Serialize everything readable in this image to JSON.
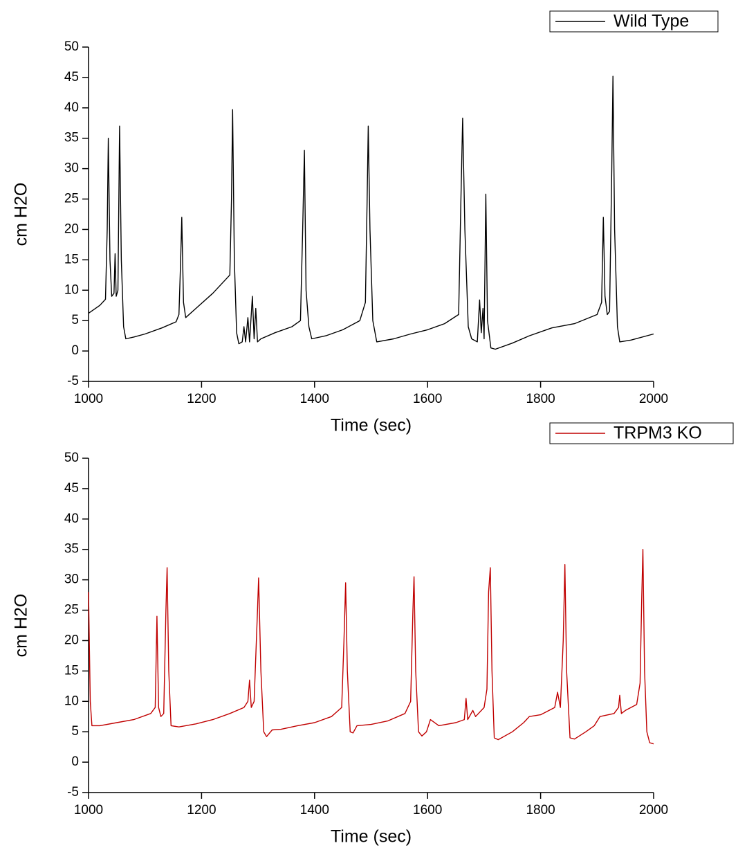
{
  "chart_data": [
    {
      "type": "line",
      "xlabel": "Time (sec)",
      "ylabel": "cm H2O",
      "xlim": [
        1000,
        2000
      ],
      "ylim": [
        -5,
        50
      ],
      "xticks": [
        1000,
        1200,
        1400,
        1600,
        1800,
        2000
      ],
      "yticks": [
        -5,
        0,
        5,
        10,
        15,
        20,
        25,
        30,
        35,
        40,
        45,
        50
      ],
      "legend": "upper right",
      "x": [
        1000,
        1020,
        1030,
        1033,
        1035,
        1038,
        1041,
        1045,
        1047,
        1049,
        1052,
        1055,
        1058,
        1062,
        1066,
        1080,
        1100,
        1130,
        1155,
        1160,
        1163,
        1165,
        1168,
        1172,
        1190,
        1220,
        1250,
        1253,
        1255,
        1258,
        1262,
        1266,
        1272,
        1275,
        1278,
        1282,
        1285,
        1290,
        1293,
        1296,
        1299,
        1305,
        1330,
        1360,
        1375,
        1379,
        1382,
        1385,
        1390,
        1395,
        1420,
        1450,
        1480,
        1490,
        1493,
        1495,
        1498,
        1503,
        1510,
        1540,
        1570,
        1600,
        1630,
        1655,
        1659,
        1662,
        1666,
        1672,
        1678,
        1688,
        1692,
        1695,
        1698,
        1700,
        1703,
        1706,
        1712,
        1720,
        1750,
        1780,
        1820,
        1860,
        1900,
        1908,
        1911,
        1914,
        1918,
        1922,
        1926,
        1928,
        1931,
        1936,
        1940,
        1960,
        2000
      ],
      "series": [
        {
          "name": "Wild Type",
          "color": "#000000",
          "values": [
            6.2,
            7.5,
            8.5,
            20,
            35,
            15,
            9,
            9.5,
            16,
            9,
            10,
            37,
            15,
            4,
            2,
            2.3,
            2.8,
            3.8,
            4.8,
            6,
            15,
            22,
            8,
            5.5,
            7,
            9.5,
            12.5,
            25,
            39.7,
            15,
            3,
            1.2,
            1.5,
            4,
            1.5,
            5.5,
            1.5,
            9,
            2,
            7,
            1.5,
            2,
            3,
            4,
            5,
            20,
            33,
            10,
            4,
            2,
            2.5,
            3.5,
            5,
            8,
            25,
            37,
            20,
            5,
            1.5,
            2,
            2.8,
            3.5,
            4.5,
            6,
            25,
            38.3,
            20,
            4,
            2,
            1.5,
            8.4,
            3,
            7,
            2,
            25.8,
            5,
            0.5,
            0.3,
            1.3,
            2.5,
            3.8,
            4.5,
            6,
            8,
            22,
            9,
            6,
            6.5,
            30,
            45.2,
            20,
            4,
            1.5,
            1.8,
            2.8
          ]
        }
      ]
    },
    {
      "type": "line",
      "xlabel": "Time (sec)",
      "ylabel": "cm H2O",
      "xlim": [
        1000,
        2000
      ],
      "ylim": [
        -5,
        50
      ],
      "xticks": [
        1000,
        1200,
        1400,
        1600,
        1800,
        2000
      ],
      "yticks": [
        -5,
        0,
        5,
        10,
        15,
        20,
        25,
        30,
        35,
        40,
        45,
        50
      ],
      "legend": "upper right",
      "x": [
        1000,
        1003,
        1006,
        1020,
        1050,
        1080,
        1110,
        1118,
        1121,
        1124,
        1128,
        1133,
        1137,
        1139,
        1142,
        1146,
        1160,
        1190,
        1220,
        1250,
        1275,
        1282,
        1285,
        1288,
        1293,
        1299,
        1301,
        1305,
        1310,
        1315,
        1325,
        1340,
        1370,
        1400,
        1430,
        1448,
        1452,
        1455,
        1458,
        1463,
        1468,
        1475,
        1500,
        1530,
        1560,
        1570,
        1574,
        1576,
        1579,
        1584,
        1590,
        1598,
        1605,
        1620,
        1650,
        1665,
        1668,
        1671,
        1680,
        1685,
        1700,
        1705,
        1708,
        1711,
        1714,
        1718,
        1725,
        1750,
        1770,
        1780,
        1800,
        1825,
        1830,
        1835,
        1840,
        1843,
        1846,
        1852,
        1860,
        1880,
        1895,
        1905,
        1930,
        1938,
        1940,
        1943,
        1950,
        1970,
        1976,
        1979,
        1981,
        1984,
        1988,
        1993,
        2000
      ],
      "series": [
        {
          "name": "TRPM3 KO",
          "color": "#c00000",
          "values": [
            28,
            10,
            6,
            6,
            6.5,
            7,
            8,
            9,
            24,
            9,
            7.5,
            8,
            25,
            32,
            15,
            6,
            5.8,
            6.3,
            7,
            8,
            9,
            10,
            13.5,
            9,
            10,
            25,
            30.3,
            15,
            5,
            4.2,
            5.3,
            5.4,
            6,
            6.5,
            7.5,
            9,
            20,
            29.5,
            15,
            5,
            4.8,
            6,
            6.2,
            6.8,
            8,
            10,
            25,
            30.5,
            15,
            5,
            4.3,
            5,
            7,
            6,
            6.5,
            7,
            10.5,
            7,
            8.5,
            7.5,
            9,
            12,
            28,
            32,
            15,
            4,
            3.7,
            5,
            6.5,
            7.5,
            7.8,
            9,
            11.5,
            9,
            20,
            32.5,
            15,
            4,
            3.8,
            5,
            6,
            7.5,
            8,
            9,
            11,
            8,
            8.5,
            9.5,
            13,
            27,
            35,
            15,
            5,
            3.2,
            3
          ]
        }
      ]
    }
  ]
}
